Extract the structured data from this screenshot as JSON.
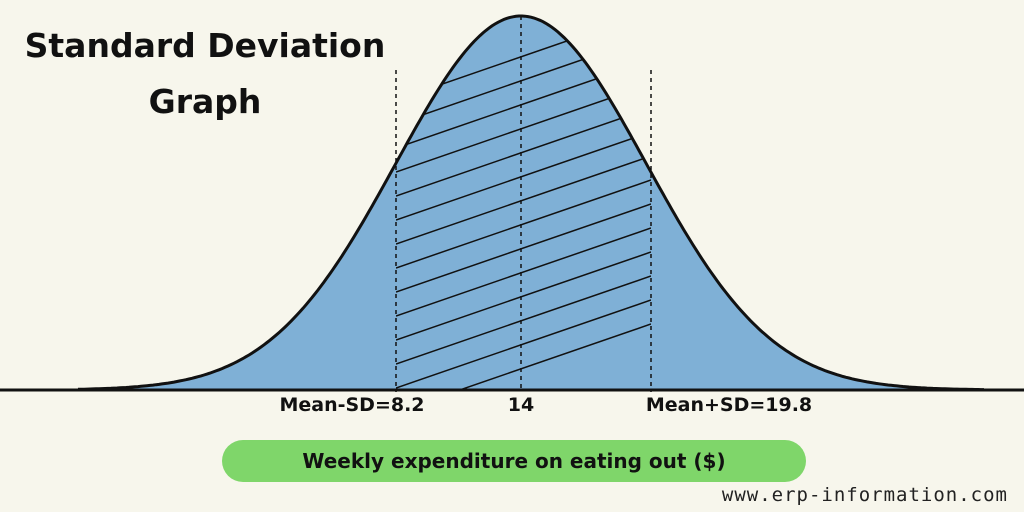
{
  "title": {
    "line1": "Standard Deviation",
    "line2": "Graph"
  },
  "ticks": {
    "left": "Mean-SD=8.2",
    "center": "14",
    "right": "Mean+SD=19.8"
  },
  "axis_pill": {
    "label": "Weekly expenditure on eating out ($)"
  },
  "footer": {
    "url": "www.erp-information.com"
  },
  "distribution": {
    "mean": 14,
    "sd": 5.8,
    "shaded_from": 8.2,
    "shaded_to": 19.8
  },
  "colors": {
    "background": "#f7f6ec",
    "curve_fill": "#7fb0d6",
    "outline": "#111111",
    "pill": "#7fd66a"
  }
}
